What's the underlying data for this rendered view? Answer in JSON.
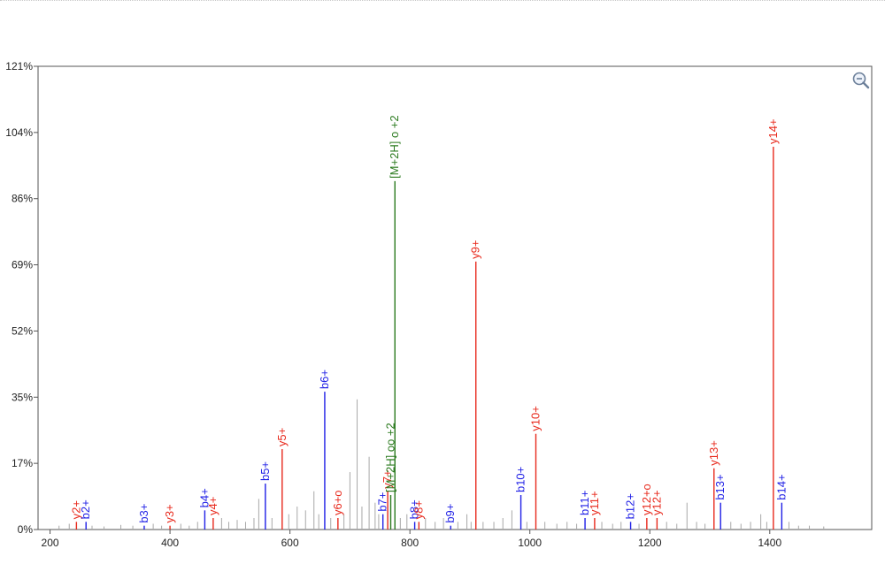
{
  "chart_data": {
    "type": "bar",
    "xlim": [
      180,
      1570
    ],
    "ylim": [
      0,
      121
    ],
    "x_ticks": [
      "200",
      "400",
      "600",
      "800",
      "1000",
      "1200",
      "1400"
    ],
    "y_ticks": [
      "0%",
      "17%",
      "35%",
      "52%",
      "69%",
      "86%",
      "104%",
      "121%"
    ],
    "colors": {
      "b": "#1f1fe6",
      "y": "#e8291c",
      "precursor": "#2a7a1e",
      "unassigned": "#a8a8a8"
    },
    "annotated_peaks": [
      {
        "label": "y2+",
        "ion": "y",
        "x": 244,
        "y": 2
      },
      {
        "label": "b2+",
        "ion": "b",
        "x": 260,
        "y": 2
      },
      {
        "label": "b3+",
        "ion": "b",
        "x": 357,
        "y": 1
      },
      {
        "label": "y3+",
        "ion": "y",
        "x": 400,
        "y": 1
      },
      {
        "label": "b4+",
        "ion": "b",
        "x": 458,
        "y": 5
      },
      {
        "label": "y4+",
        "ion": "y",
        "x": 472,
        "y": 3
      },
      {
        "label": "b5+",
        "ion": "b",
        "x": 559,
        "y": 12
      },
      {
        "label": "y5+",
        "ion": "y",
        "x": 587,
        "y": 21
      },
      {
        "label": "b6+",
        "ion": "b",
        "x": 658,
        "y": 36
      },
      {
        "label": "y6+o",
        "ion": "y",
        "x": 680,
        "y": 3
      },
      {
        "label": "b7+",
        "ion": "b",
        "x": 755,
        "y": 4
      },
      {
        "label": "y7+",
        "ion": "y",
        "x": 763,
        "y": 10
      },
      {
        "label": "[M+2H] oo +2",
        "ion": "precursor",
        "x": 768,
        "y": 9
      },
      {
        "label": "[M+2H] o +2",
        "ion": "precursor",
        "x": 775,
        "y": 91
      },
      {
        "label": "b8+",
        "ion": "b",
        "x": 808,
        "y": 2
      },
      {
        "label": "y8+",
        "ion": "y",
        "x": 815,
        "y": 2
      },
      {
        "label": "b9+",
        "ion": "b",
        "x": 868,
        "y": 1
      },
      {
        "label": "y9+",
        "ion": "y",
        "x": 910,
        "y": 70
      },
      {
        "label": "b10+",
        "ion": "b",
        "x": 985,
        "y": 9
      },
      {
        "label": "y10+",
        "ion": "y",
        "x": 1010,
        "y": 25
      },
      {
        "label": "b11+",
        "ion": "b",
        "x": 1092,
        "y": 3
      },
      {
        "label": "y11+",
        "ion": "y",
        "x": 1108,
        "y": 3
      },
      {
        "label": "b12+",
        "ion": "b",
        "x": 1168,
        "y": 2
      },
      {
        "label": "y12+o",
        "ion": "y",
        "x": 1195,
        "y": 3
      },
      {
        "label": "y12+",
        "ion": "y",
        "x": 1212,
        "y": 3
      },
      {
        "label": "y13+",
        "ion": "y",
        "x": 1307,
        "y": 16
      },
      {
        "label": "b13+",
        "ion": "b",
        "x": 1318,
        "y": 7
      },
      {
        "label": "y14+",
        "ion": "y",
        "x": 1406,
        "y": 100
      },
      {
        "label": "b14+",
        "ion": "b",
        "x": 1420,
        "y": 7
      }
    ],
    "unassigned_peaks": [
      {
        "x": 215,
        "y": 1
      },
      {
        "x": 232,
        "y": 1.5
      },
      {
        "x": 270,
        "y": 1
      },
      {
        "x": 290,
        "y": 0.8
      },
      {
        "x": 318,
        "y": 1.2
      },
      {
        "x": 338,
        "y": 1
      },
      {
        "x": 372,
        "y": 1.5
      },
      {
        "x": 386,
        "y": 1
      },
      {
        "x": 418,
        "y": 1.5
      },
      {
        "x": 432,
        "y": 1
      },
      {
        "x": 446,
        "y": 2
      },
      {
        "x": 486,
        "y": 3
      },
      {
        "x": 498,
        "y": 2
      },
      {
        "x": 512,
        "y": 2.5
      },
      {
        "x": 526,
        "y": 2
      },
      {
        "x": 540,
        "y": 3
      },
      {
        "x": 548,
        "y": 8
      },
      {
        "x": 570,
        "y": 3
      },
      {
        "x": 598,
        "y": 4
      },
      {
        "x": 612,
        "y": 6
      },
      {
        "x": 626,
        "y": 5
      },
      {
        "x": 640,
        "y": 10
      },
      {
        "x": 648,
        "y": 4
      },
      {
        "x": 668,
        "y": 3
      },
      {
        "x": 690,
        "y": 4
      },
      {
        "x": 700,
        "y": 15
      },
      {
        "x": 712,
        "y": 34
      },
      {
        "x": 720,
        "y": 6
      },
      {
        "x": 732,
        "y": 19
      },
      {
        "x": 742,
        "y": 7
      },
      {
        "x": 748,
        "y": 4
      },
      {
        "x": 784,
        "y": 3
      },
      {
        "x": 795,
        "y": 4
      },
      {
        "x": 826,
        "y": 3
      },
      {
        "x": 842,
        "y": 2
      },
      {
        "x": 856,
        "y": 3
      },
      {
        "x": 880,
        "y": 2
      },
      {
        "x": 895,
        "y": 4
      },
      {
        "x": 902,
        "y": 2
      },
      {
        "x": 922,
        "y": 2
      },
      {
        "x": 940,
        "y": 2
      },
      {
        "x": 955,
        "y": 3
      },
      {
        "x": 970,
        "y": 5
      },
      {
        "x": 995,
        "y": 2
      },
      {
        "x": 1025,
        "y": 2
      },
      {
        "x": 1045,
        "y": 1.5
      },
      {
        "x": 1062,
        "y": 2
      },
      {
        "x": 1078,
        "y": 1.5
      },
      {
        "x": 1120,
        "y": 2
      },
      {
        "x": 1138,
        "y": 1.5
      },
      {
        "x": 1152,
        "y": 2
      },
      {
        "x": 1182,
        "y": 1.5
      },
      {
        "x": 1228,
        "y": 2
      },
      {
        "x": 1245,
        "y": 1.5
      },
      {
        "x": 1262,
        "y": 7
      },
      {
        "x": 1278,
        "y": 2
      },
      {
        "x": 1292,
        "y": 1.5
      },
      {
        "x": 1335,
        "y": 2
      },
      {
        "x": 1352,
        "y": 1.5
      },
      {
        "x": 1368,
        "y": 2
      },
      {
        "x": 1385,
        "y": 4
      },
      {
        "x": 1395,
        "y": 2
      },
      {
        "x": 1432,
        "y": 2
      },
      {
        "x": 1448,
        "y": 1
      },
      {
        "x": 1466,
        "y": 1
      },
      {
        "x": 1490,
        "y": 0.8
      }
    ]
  },
  "zoom_icon": "zoom-out-icon"
}
